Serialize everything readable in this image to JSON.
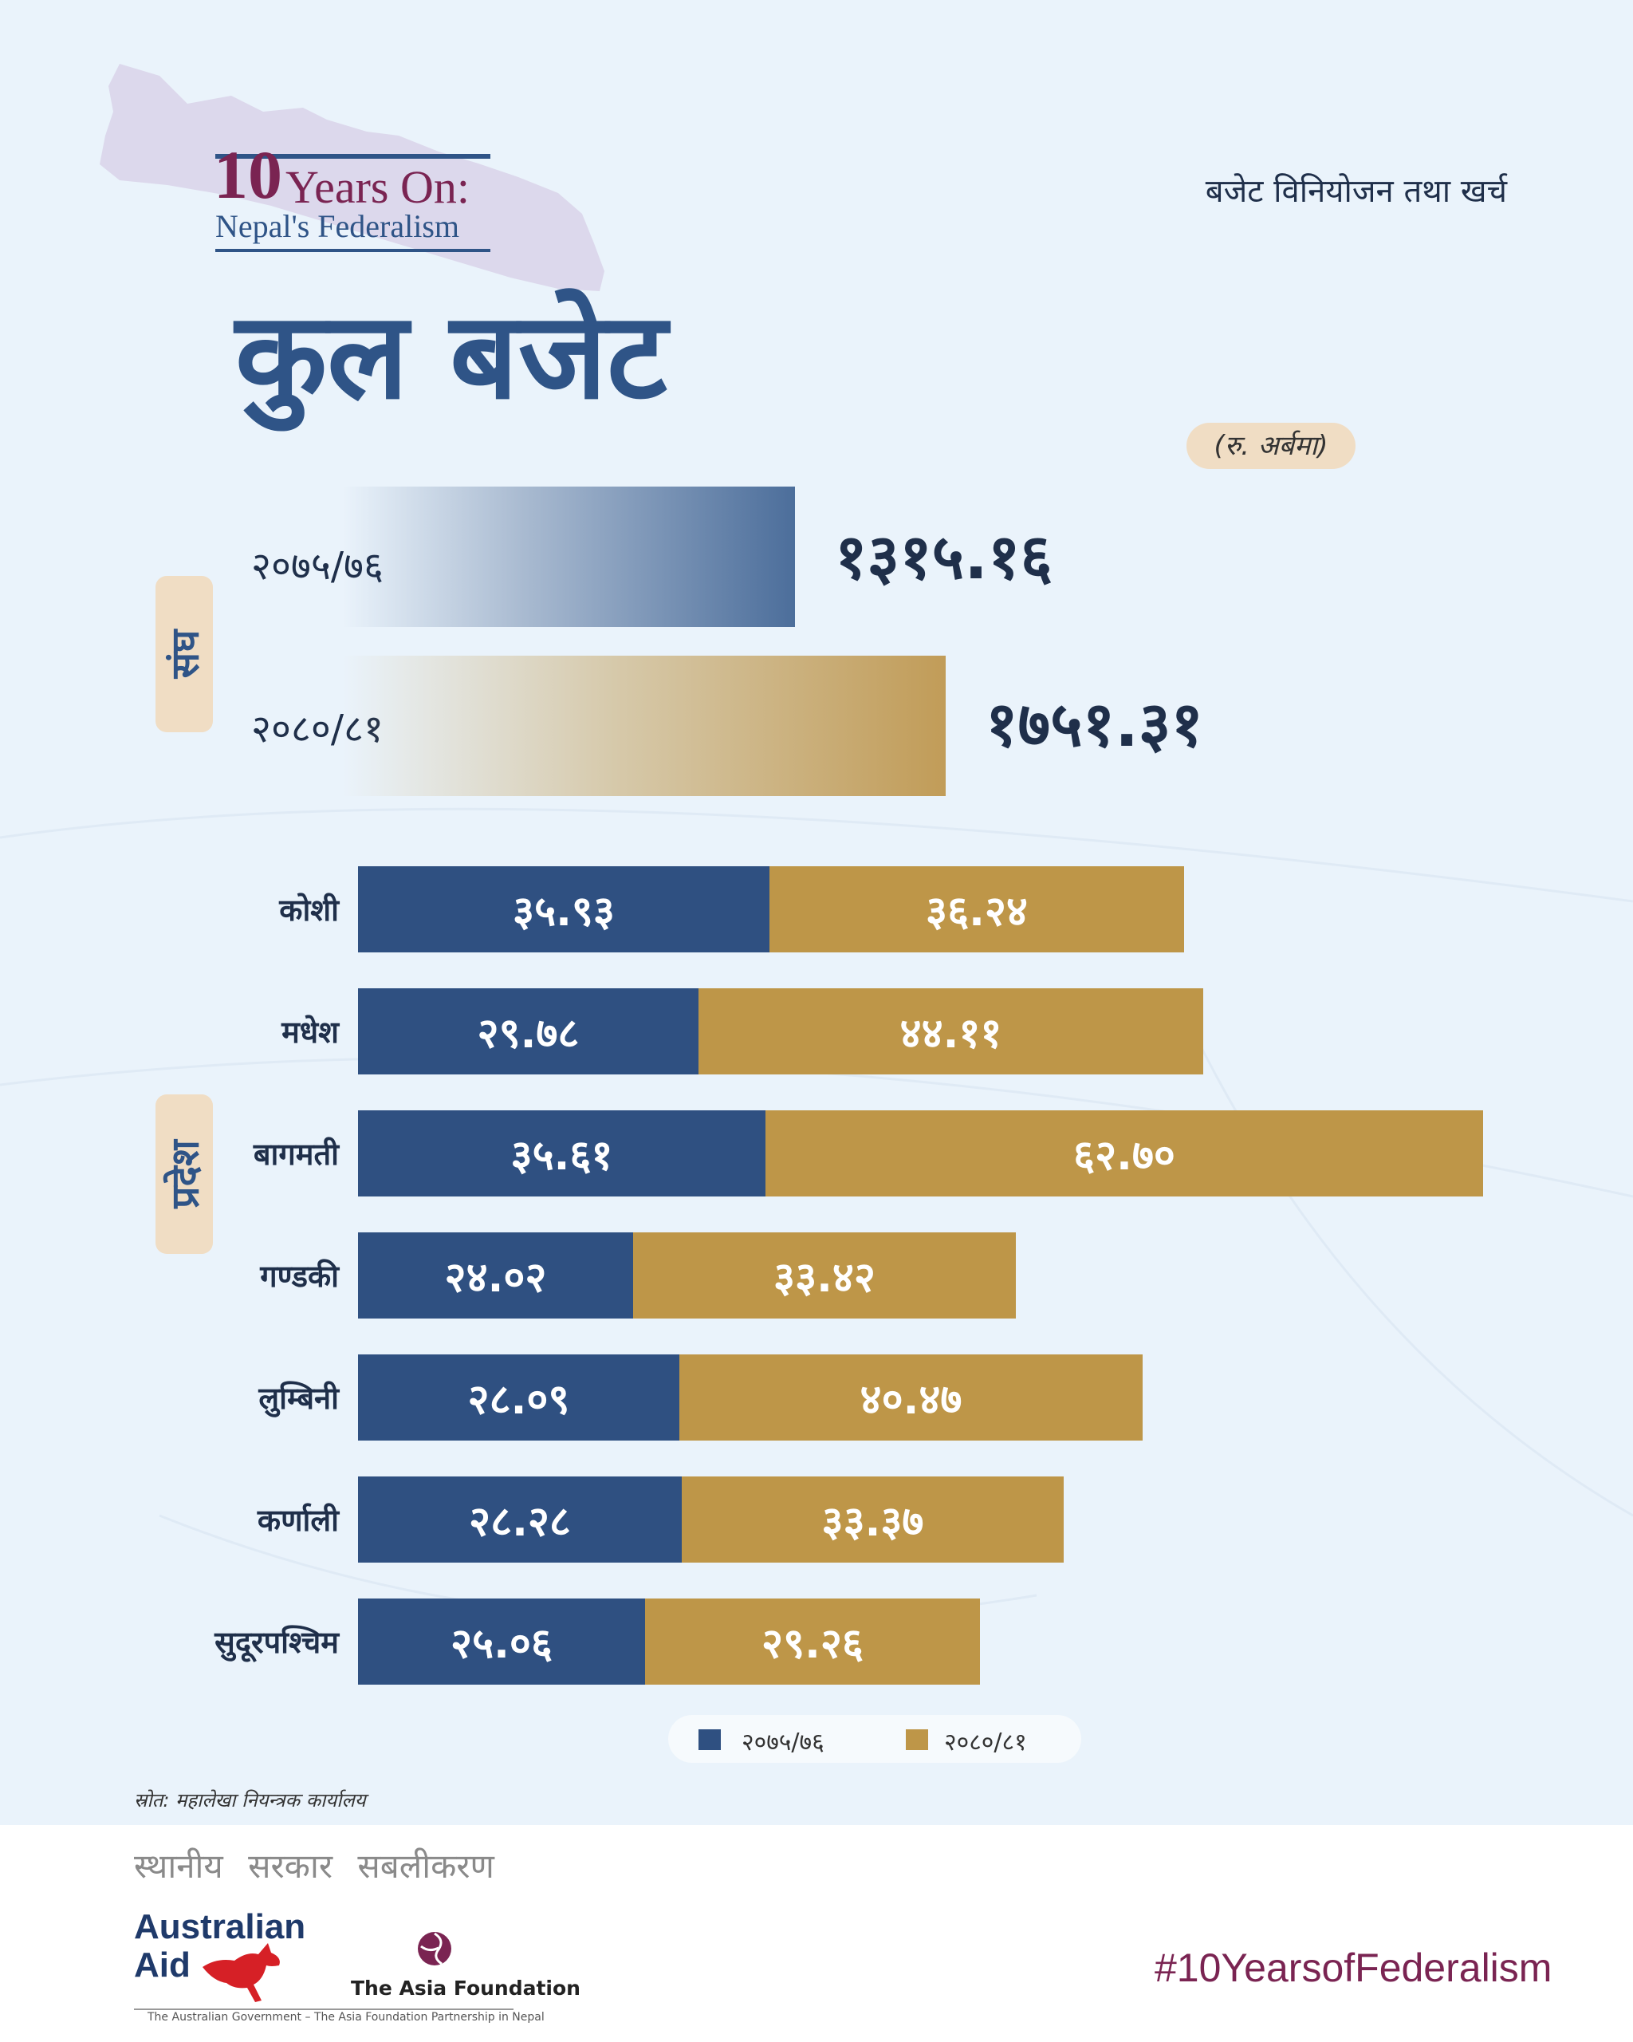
{
  "header": {
    "logo_number": "10",
    "logo_years": "Years On:",
    "logo_subtitle": "Nepal's Federalism",
    "category": "बजेट विनियोजन तथा खर्च",
    "title": "कुल बजेट",
    "unit": "(रु. अर्बमा)"
  },
  "sections": {
    "federal": "संघ",
    "provincial": "प्रदेश"
  },
  "legend": [
    "२०७५/७६",
    "२०८०/८१"
  ],
  "source": "स्रोत: महालेखा नियन्त्रक कार्यालय",
  "footer": {
    "tagline": "स्थानीय सरकार सबलीकरण",
    "aus_aid_line1": "Australian",
    "aus_aid_line2": "Aid",
    "aus_sub": "The Australian Government – The Asia Foundation Partnership in Nepal",
    "taf": "The Asia Foundation",
    "hashtag": "#10YearsofFederalism"
  },
  "colors": {
    "blue": "#2f5081",
    "gold": "#be9648",
    "title_blue": "#2f5487",
    "maroon": "#7a2452",
    "badge": "#f0ddc4"
  },
  "chart_data": [
    {
      "type": "bar",
      "section": "संघ",
      "categories": [
        "२०७५/७६",
        "२०८०/८१"
      ],
      "values": [
        1315.16,
        1751.31
      ],
      "labels": [
        "१३१५.१६",
        "१७५१.३१"
      ]
    },
    {
      "type": "bar",
      "stacked": true,
      "orientation": "horizontal",
      "section": "प्रदेश",
      "categories": [
        "कोशी",
        "मधेश",
        "बागमती",
        "गण्डकी",
        "लुम्बिनी",
        "कर्णाली",
        "सुदूरपश्चिम"
      ],
      "series": [
        {
          "name": "२०७५/७६",
          "values": [
            35.93,
            29.78,
            35.61,
            24.02,
            28.09,
            28.28,
            25.06
          ],
          "labels": [
            "३५.९३",
            "२९.७८",
            "३५.६१",
            "२४.०२",
            "२८.०९",
            "२८.२८",
            "२५.०६"
          ]
        },
        {
          "name": "२०८०/८१",
          "values": [
            36.24,
            44.11,
            62.7,
            33.42,
            40.47,
            33.37,
            29.26
          ],
          "labels": [
            "३६.२४",
            "४४.११",
            "६२.७०",
            "३३.४२",
            "४०.४७",
            "३३.३७",
            "२९.२६"
          ]
        }
      ]
    }
  ]
}
